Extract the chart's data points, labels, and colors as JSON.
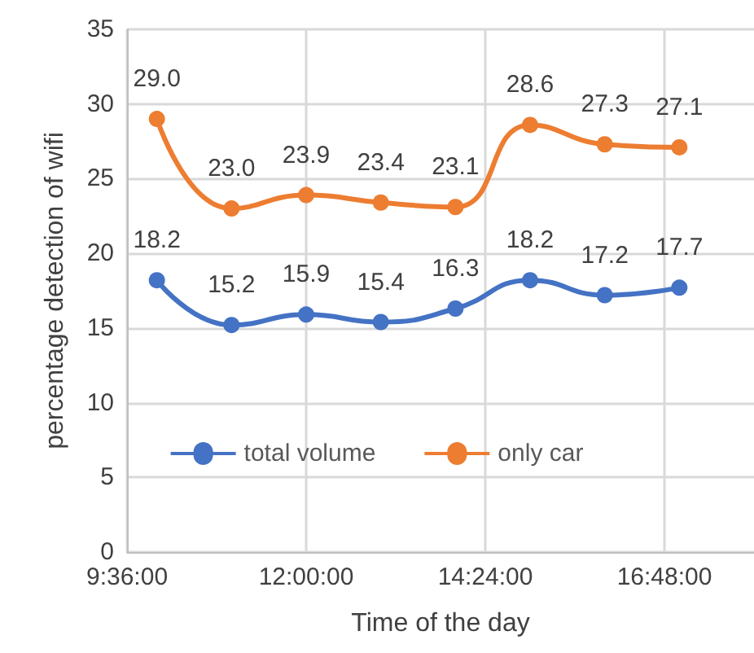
{
  "chart_data": {
    "type": "line",
    "xlabel": "Time of the day",
    "ylabel": "percentage detection of wifi",
    "x": [
      10,
      11,
      12,
      13,
      14,
      15,
      16,
      17
    ],
    "series": [
      {
        "name": "total volume",
        "color": "#4472c4",
        "values": [
          18.2,
          15.2,
          15.9,
          15.4,
          16.3,
          18.2,
          17.2,
          17.7
        ],
        "value_labels": [
          "18.2",
          "15.2",
          "15.9",
          "15.4",
          "16.3",
          "18.2",
          "17.2",
          "17.7"
        ]
      },
      {
        "name": "only car",
        "color": "#ed7d31",
        "values": [
          29.0,
          23.0,
          23.9,
          23.4,
          23.1,
          28.6,
          27.3,
          27.1
        ],
        "value_labels": [
          "29.0",
          "23.0",
          "23.9",
          "23.4",
          "23.1",
          "28.6",
          "27.3",
          "27.1"
        ]
      }
    ],
    "xlim": [
      9.6,
      18
    ],
    "xticks": [
      {
        "value": 9.6,
        "label": "9:36:00"
      },
      {
        "value": 12,
        "label": "12:00:00"
      },
      {
        "value": 14.4,
        "label": "14:24:00"
      },
      {
        "value": 16.8,
        "label": "16:48:00"
      }
    ],
    "ylim": [
      0,
      35
    ],
    "yticks": [
      0,
      5,
      10,
      15,
      20,
      25,
      30,
      35
    ],
    "grid": true,
    "legend": "bottom",
    "marker": "circle",
    "line_style": "solid"
  }
}
